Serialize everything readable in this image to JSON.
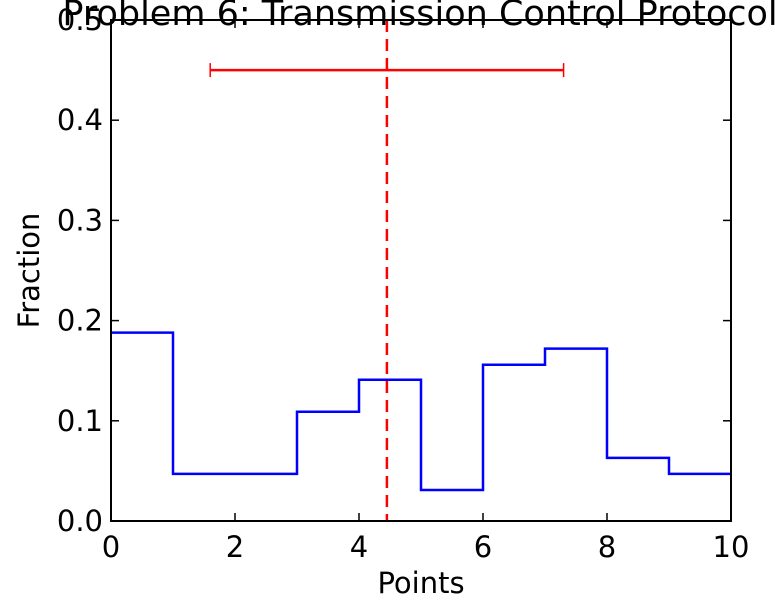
{
  "chart_data": {
    "type": "line",
    "subtype": "step-histogram",
    "title": "Problem 6: Transmission Control Protocol",
    "xlabel": "Points",
    "ylabel": "Fraction",
    "xlim": [
      0,
      10
    ],
    "ylim": [
      0,
      0.5
    ],
    "x_ticks": [
      "0",
      "2",
      "4",
      "6",
      "8",
      "10"
    ],
    "y_ticks": [
      "0.0",
      "0.1",
      "0.2",
      "0.3",
      "0.4",
      "0.5"
    ],
    "grid": false,
    "series": [
      {
        "color": "#0000ff",
        "bin_edges": [
          0,
          1,
          2,
          3,
          4,
          5,
          6,
          7,
          8,
          9,
          10
        ],
        "values": [
          0.188,
          0.047,
          0.047,
          0.109,
          0.141,
          0.031,
          0.156,
          0.172,
          0.063,
          0.047
        ]
      }
    ],
    "mean_line": {
      "x": 4.45,
      "color": "#ff0000",
      "style": "dashed"
    },
    "spread_bar": {
      "x_min": 1.6,
      "x_max": 7.3,
      "y": 0.45,
      "color": "#ff0000"
    }
  }
}
